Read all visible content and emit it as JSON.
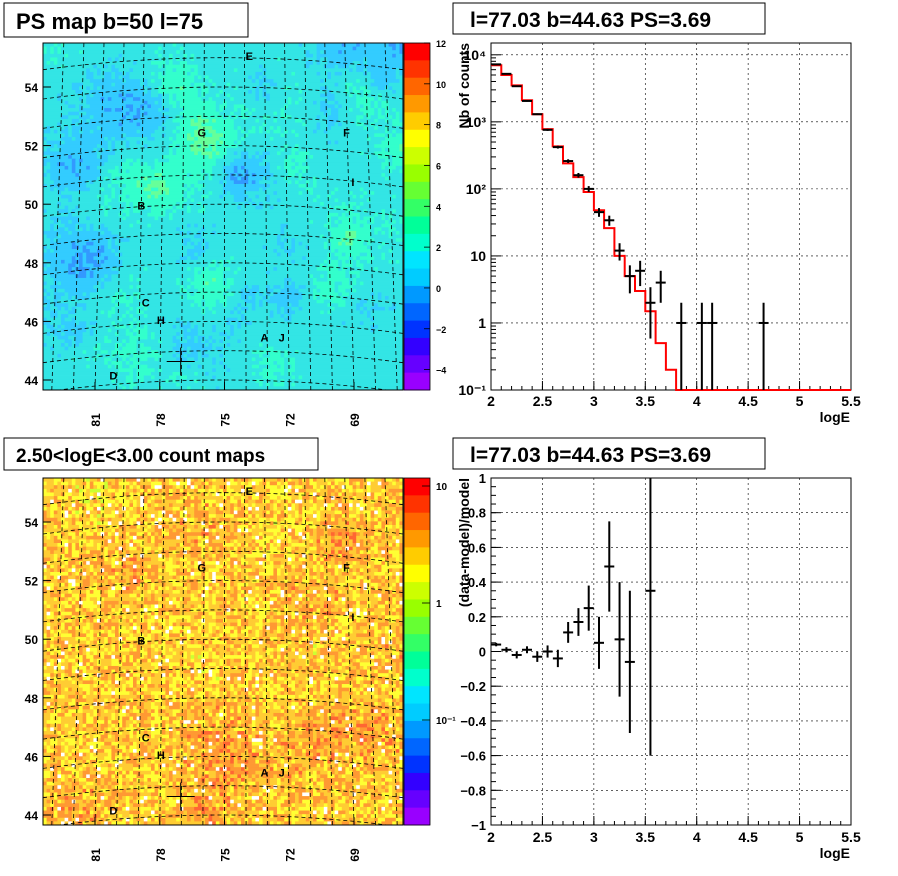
{
  "chart_data": [
    {
      "type": "heatmap",
      "title": "PS map b=50 l=75",
      "x_ticks": [
        "81",
        "78",
        "75",
        "72",
        "69"
      ],
      "y_ticks": [
        "54",
        "52",
        "50",
        "48",
        "46",
        "44"
      ],
      "colorbar_ticks": [
        "12",
        "10",
        "8",
        "6",
        "4",
        "2",
        "0",
        "−2",
        "−4"
      ],
      "colorbar_range": [
        -5,
        12
      ],
      "source_labels": [
        {
          "label": "E",
          "l": 73.85,
          "b": 55.05
        },
        {
          "label": "G",
          "l": 76.05,
          "b": 52.45
        },
        {
          "label": "F",
          "l": 69.35,
          "b": 52.45
        },
        {
          "label": "I",
          "l": 69.05,
          "b": 50.75
        },
        {
          "label": "B",
          "l": 78.85,
          "b": 49.95
        },
        {
          "label": "C",
          "l": 78.65,
          "b": 46.65
        },
        {
          "label": "H",
          "l": 77.95,
          "b": 46.05
        },
        {
          "label": "A",
          "l": 73.15,
          "b": 45.45
        },
        {
          "label": "J",
          "l": 72.35,
          "b": 45.45
        },
        {
          "label": "D",
          "l": 80.15,
          "b": 44.15
        }
      ],
      "marker": {
        "l": 77.03,
        "b": 44.63
      }
    },
    {
      "type": "line",
      "title": "l=77.03 b=44.63 PS=3.69",
      "xlabel": "logE",
      "ylabel": "Nb of counts",
      "xlim": [
        2,
        5.5
      ],
      "ylim": [
        0.1,
        15000
      ],
      "yscale": "log",
      "grid": true,
      "x_ticks": [
        "2",
        "2.5",
        "3",
        "3.5",
        "4",
        "4.5",
        "5",
        "5.5"
      ],
      "y_ticks": [
        "10⁻¹",
        "1",
        "10",
        "10²",
        "10³",
        "10⁴"
      ],
      "series": [
        {
          "kind": "data",
          "color": "#000000",
          "x": [
            2.05,
            2.15,
            2.25,
            2.35,
            2.45,
            2.55,
            2.65,
            2.75,
            2.85,
            2.95,
            3.05,
            3.15,
            3.25,
            3.35,
            3.45,
            3.55,
            3.65,
            3.85,
            4.05,
            4.15,
            4.65
          ],
          "y": [
            7200,
            5200,
            3400,
            2050,
            1300,
            760,
            420,
            260,
            160,
            100,
            45,
            34,
            12,
            5,
            6,
            2,
            4,
            1,
            1,
            1,
            1
          ]
        },
        {
          "kind": "model",
          "color": "#ff0000",
          "edges": [
            2.0,
            2.1,
            2.2,
            2.3,
            2.4,
            2.5,
            2.6,
            2.7,
            2.8,
            2.9,
            3.0,
            3.1,
            3.2,
            3.3,
            3.4,
            3.5,
            3.6,
            3.7,
            3.8,
            3.9,
            5.5
          ],
          "values": [
            7000,
            5000,
            3500,
            2100,
            1300,
            780,
            430,
            240,
            150,
            90,
            48,
            26,
            10,
            5,
            3,
            1.5,
            0.5,
            0.2,
            0.1,
            0.1
          ]
        }
      ]
    },
    {
      "type": "heatmap",
      "title": "2.50<logE<3.00 count maps",
      "x_ticks": [
        "81",
        "78",
        "75",
        "72",
        "69"
      ],
      "y_ticks": [
        "54",
        "52",
        "50",
        "48",
        "46",
        "44"
      ],
      "colorbar_ticks": [
        "10",
        "1",
        "10⁻¹"
      ],
      "colorbar_scale": "log",
      "source_labels": [
        {
          "label": "E",
          "l": 73.85,
          "b": 55.05
        },
        {
          "label": "G",
          "l": 76.05,
          "b": 52.45
        },
        {
          "label": "F",
          "l": 69.35,
          "b": 52.45
        },
        {
          "label": "I",
          "l": 69.05,
          "b": 50.75
        },
        {
          "label": "B",
          "l": 78.85,
          "b": 49.95
        },
        {
          "label": "C",
          "l": 78.65,
          "b": 46.65
        },
        {
          "label": "H",
          "l": 77.95,
          "b": 46.05
        },
        {
          "label": "A",
          "l": 73.15,
          "b": 45.45
        },
        {
          "label": "J",
          "l": 72.35,
          "b": 45.45
        },
        {
          "label": "D",
          "l": 80.15,
          "b": 44.15
        }
      ],
      "marker": {
        "l": 77.03,
        "b": 44.63
      }
    },
    {
      "type": "scatter",
      "title": "l=77.03 b=44.63 PS=3.69",
      "xlabel": "logE",
      "ylabel": "(data-model)/model",
      "xlim": [
        2,
        5.5
      ],
      "ylim": [
        -1,
        1
      ],
      "grid": true,
      "x_ticks": [
        "2",
        "2.5",
        "3",
        "3.5",
        "4",
        "4.5",
        "5",
        "5.5"
      ],
      "y_ticks": [
        "−1",
        "−0.8",
        "−0.6",
        "−0.4",
        "−0.2",
        "0",
        "0.2",
        "0.4",
        "0.6",
        "0.8",
        "1"
      ],
      "points": [
        {
          "x": 2.05,
          "y": 0.04,
          "err": 0.01
        },
        {
          "x": 2.15,
          "y": 0.01,
          "err": 0.015
        },
        {
          "x": 2.25,
          "y": -0.02,
          "err": 0.02
        },
        {
          "x": 2.35,
          "y": 0.01,
          "err": 0.02
        },
        {
          "x": 2.45,
          "y": -0.03,
          "err": 0.03
        },
        {
          "x": 2.55,
          "y": 0.0,
          "err": 0.035
        },
        {
          "x": 2.65,
          "y": -0.04,
          "err": 0.05
        },
        {
          "x": 2.75,
          "y": 0.11,
          "err": 0.06
        },
        {
          "x": 2.85,
          "y": 0.17,
          "err": 0.08
        },
        {
          "x": 2.95,
          "y": 0.25,
          "err": 0.13
        },
        {
          "x": 3.05,
          "y": 0.05,
          "err": 0.15
        },
        {
          "x": 3.15,
          "y": 0.49,
          "err": 0.26
        },
        {
          "x": 3.25,
          "y": 0.07,
          "err": 0.33
        },
        {
          "x": 3.35,
          "y": -0.06,
          "err": 0.41
        },
        {
          "x": 3.55,
          "y": 0.35,
          "err": 0.95
        }
      ]
    }
  ]
}
